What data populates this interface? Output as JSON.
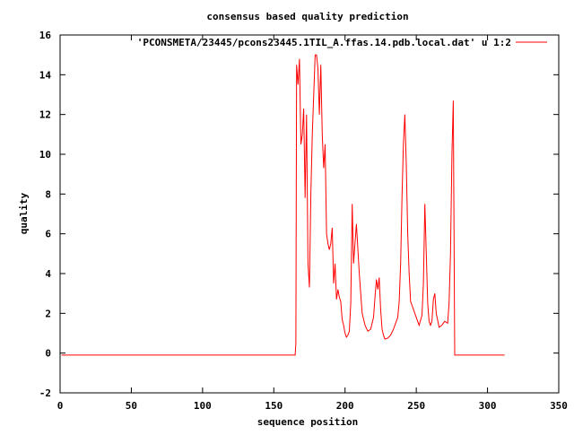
{
  "chart_data": {
    "type": "line",
    "title": "consensus based quality prediction",
    "xlabel": "sequence position",
    "ylabel": "quality",
    "xlim": [
      0,
      350
    ],
    "ylim": [
      -2,
      16
    ],
    "xticks": [
      0,
      50,
      100,
      150,
      200,
      250,
      300,
      350
    ],
    "yticks": [
      -2,
      0,
      2,
      4,
      6,
      8,
      10,
      12,
      14,
      16
    ],
    "grid": false,
    "legend_position": "top-right",
    "colors": {
      "series": "#ff0000",
      "axes": "#000000"
    },
    "series": [
      {
        "name": "'PCONSMETA/23445/pcons23445.1TIL_A.ffas.14.pdb.local.dat' u 1:2",
        "x": [
          1,
          165,
          165.5,
          166,
          167,
          168,
          169,
          170,
          171,
          172,
          173,
          174,
          175,
          176,
          177,
          178,
          179,
          180,
          181,
          182,
          183,
          184,
          185,
          186,
          187,
          188,
          189,
          190,
          191,
          192,
          193,
          194,
          195,
          196,
          197,
          198,
          199,
          200,
          201,
          202,
          203,
          204,
          205,
          206,
          208,
          210,
          212,
          214,
          216,
          218,
          220,
          221,
          222,
          223,
          224,
          225,
          226,
          227,
          228,
          230,
          232,
          234,
          236,
          237,
          238,
          239,
          240,
          241,
          242,
          243,
          244,
          245,
          246,
          248,
          250,
          252,
          254,
          255,
          256,
          257,
          258,
          259,
          260,
          261,
          262,
          263,
          264,
          266,
          268,
          270,
          272,
          273,
          274,
          275,
          276,
          277,
          278,
          279,
          280,
          282,
          284,
          285,
          286,
          287,
          288,
          290,
          292,
          294,
          296,
          298,
          299,
          300,
          301,
          302,
          303,
          312
        ],
        "y": [
          -0.1,
          -0.1,
          0.5,
          14.5,
          13.5,
          14.8,
          10.5,
          11.0,
          12.3,
          7.8,
          12.0,
          4.5,
          3.3,
          8.0,
          11.0,
          13.0,
          15.0,
          15.0,
          14.3,
          12.0,
          14.5,
          11.0,
          9.3,
          10.5,
          6.0,
          5.5,
          5.2,
          5.5,
          6.3,
          3.5,
          4.5,
          2.7,
          3.2,
          2.8,
          2.6,
          1.7,
          1.4,
          1.0,
          0.8,
          0.9,
          1.1,
          2.5,
          7.5,
          4.5,
          6.5,
          4.0,
          2.0,
          1.4,
          1.1,
          1.2,
          1.8,
          2.8,
          3.7,
          3.2,
          3.8,
          2.2,
          1.2,
          0.9,
          0.7,
          0.75,
          0.9,
          1.2,
          1.6,
          1.8,
          2.6,
          4.5,
          8.0,
          10.5,
          12.0,
          9.5,
          6.0,
          4.0,
          2.6,
          2.2,
          1.8,
          1.4,
          1.9,
          3.5,
          7.5,
          5.0,
          2.5,
          1.6,
          1.4,
          1.6,
          2.7,
          3.0,
          2.0,
          1.3,
          1.4,
          1.6,
          1.5,
          2.5,
          5.0,
          10.0,
          12.7,
          -0.1,
          -0.1,
          -0.1,
          -0.1,
          -0.1,
          -0.1,
          -0.1,
          -0.1,
          -0.1,
          -0.1,
          -0.1,
          -0.1,
          -0.1,
          -0.1,
          -0.1,
          -0.1,
          -0.1,
          -0.1,
          -0.1,
          -0.1,
          -0.1
        ]
      }
    ]
  }
}
